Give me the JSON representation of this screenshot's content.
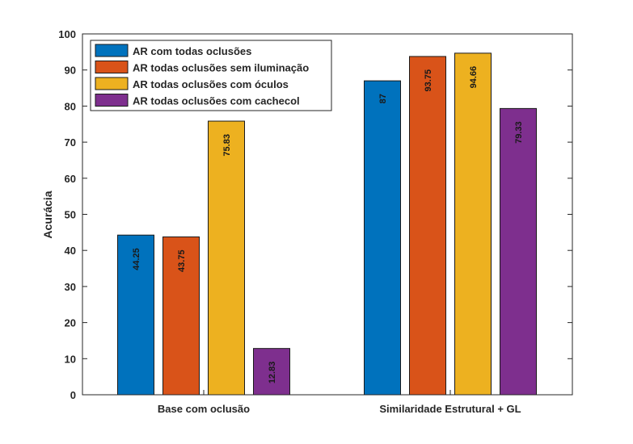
{
  "chart_data": {
    "type": "bar",
    "title": "",
    "xlabel": "",
    "ylabel": "Acurácia",
    "ylim": [
      0,
      100
    ],
    "yticks": [
      0,
      10,
      20,
      30,
      40,
      50,
      60,
      70,
      80,
      90,
      100
    ],
    "grid": false,
    "legend_position": "top-left",
    "categories": [
      "Base com oclusão",
      "Similaridade Estrutural + GL"
    ],
    "series": [
      {
        "name": "AR com todas oclusões",
        "color": "#0072BD",
        "values": [
          44.25,
          87
        ],
        "labels": [
          "44.25",
          "87"
        ]
      },
      {
        "name": "AR todas oclusões sem iluminação",
        "color": "#D95319",
        "values": [
          43.75,
          93.75
        ],
        "labels": [
          "43.75",
          "93.75"
        ]
      },
      {
        "name": "AR todas oclusões com óculos",
        "color": "#EDB120",
        "values": [
          75.83,
          94.66
        ],
        "labels": [
          "75.83",
          "94.66"
        ]
      },
      {
        "name": "AR todas oclusões com cachecol",
        "color": "#7E2F8E",
        "values": [
          12.83,
          79.33
        ],
        "labels": [
          "12.83",
          "79.33"
        ]
      }
    ]
  }
}
